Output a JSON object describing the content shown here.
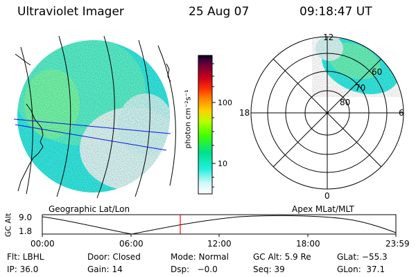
{
  "header": {
    "title": "Ultraviolet Imager",
    "date": "25 Aug 07",
    "time": "09:18:47 UT"
  },
  "geographic_panel": {
    "label": "Geographic Lat/Lon"
  },
  "colorbar": {
    "unit_label": "photon cm⁻²s⁻¹",
    "ticks": [
      "100",
      "10"
    ],
    "scale": "log",
    "colors": [
      "#000000",
      "#3a0040",
      "#7a0030",
      "#c8001e",
      "#ff3000",
      "#ff8c00",
      "#ffd200",
      "#b4ff00",
      "#40ff00",
      "#00e08c",
      "#20f0e0",
      "#d0f8f8",
      "#ffffff"
    ]
  },
  "polar_panel": {
    "label": "Apex MLat/MLT",
    "mlt_labels": [
      "12",
      "18",
      "6",
      "0"
    ],
    "mlat_labels": [
      "60",
      "70",
      "80"
    ]
  },
  "altitude_plot": {
    "ylabel": "GC Alt",
    "ytick_top": "9.0",
    "ytick_bottom": "1.8",
    "xticks": [
      "00:00",
      "06:00",
      "12:00",
      "18:00",
      "23:59"
    ],
    "current_time_marker_color": "#ff0000"
  },
  "status": {
    "row1": [
      {
        "name": "flt",
        "text": "Flt: LBHL"
      },
      {
        "name": "door",
        "text": "Door: Closed"
      },
      {
        "name": "mode",
        "text": "Mode: Normal"
      },
      {
        "name": "gc-alt",
        "text": "GC Alt: 5.9 Re"
      },
      {
        "name": "glat",
        "text": "GLat: −55.3"
      }
    ],
    "row2": [
      {
        "name": "ip",
        "text": "IP: 36.0"
      },
      {
        "name": "gain",
        "text": "Gain: 14"
      },
      {
        "name": "dsp",
        "text": "Dsp:   −0.0"
      },
      {
        "name": "seq",
        "text": "Seq: 39"
      },
      {
        "name": "glon",
        "text": "GLon:  37.1"
      }
    ]
  }
}
